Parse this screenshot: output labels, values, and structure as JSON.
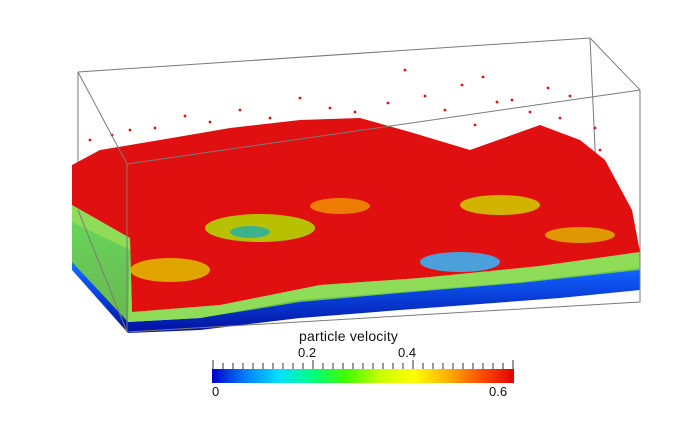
{
  "colorbar": {
    "title": "particle velocity",
    "top_labels": [
      "0.2",
      "0.4"
    ],
    "bottom_labels": [
      "0",
      "0.6"
    ],
    "min": 0,
    "max": 0.6,
    "colormap": [
      "#0000c8",
      "#0080ff",
      "#00e0ff",
      "#00ff80",
      "#40ff00",
      "#c8ff00",
      "#ffff00",
      "#ffb400",
      "#ff5000",
      "#e00000"
    ]
  },
  "scene": {
    "dominant_color": "#e01010",
    "background_color": "#ffffff",
    "box_line_color": "#7a7a7a"
  }
}
